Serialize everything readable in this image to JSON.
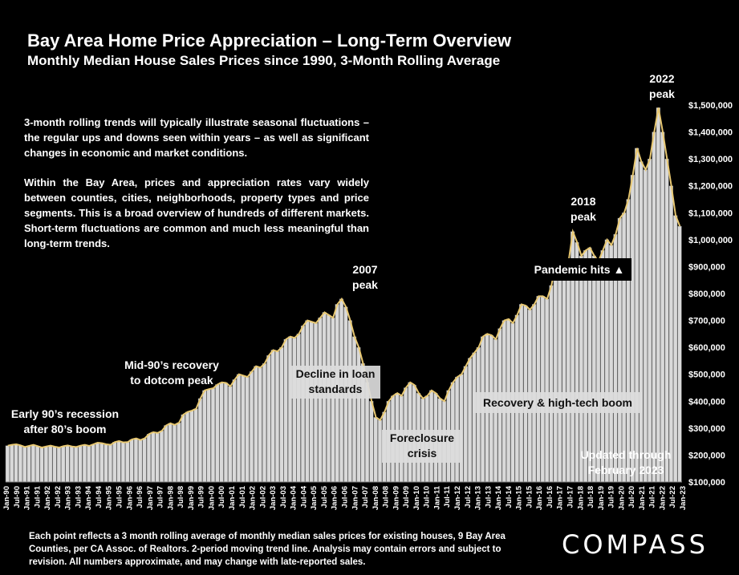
{
  "header": {
    "title": "Bay Area Home Price Appreciation – Long-Term Overview",
    "subtitle": "Monthly Median House Sales Prices since 1990, 3-Month Rolling Average"
  },
  "body_text": {
    "paragraph1": "3-month rolling trends will typically illustrate seasonal fluctuations – the regular ups and downs seen within years – as well as significant changes in economic and market conditions.",
    "paragraph2": "Within the Bay Area, prices and appreciation rates vary widely between counties, cities, neighborhoods, property types and price segments. This is a broad overview of hundreds of different markets. Short-term fluctuations are common and much less meaningful than long-term trends."
  },
  "annotations": {
    "early90s": [
      "Early 90’s recession",
      "after 80’s boom"
    ],
    "mid90s": [
      "Mid-90’s recovery",
      "to dotcom peak"
    ],
    "decline": [
      "Decline in loan",
      "standards"
    ],
    "peak2007": [
      "2007",
      "peak"
    ],
    "foreclosure": [
      "Foreclosure",
      "crisis"
    ],
    "recovery": "Recovery & high-tech boom",
    "peak2018": [
      "2018",
      "peak"
    ],
    "pandemic": "Pandemic hits ▲",
    "peak2022": [
      "2022",
      "peak"
    ],
    "updated": [
      "Updated through",
      "February 2023"
    ]
  },
  "footer": {
    "note": "Each point reflects a 3 month rolling average of monthly median sales prices for existing houses, 9 Bay Area Counties, per CA Assoc. of Realtors. 2-period moving trend line. Analysis may contain errors and subject to revision. All numbers approximate, and may change with late-reported sales.",
    "logo": "COMPASS"
  },
  "colors": {
    "background": "#000000",
    "bars": "#d9d9d9",
    "bar_outline": "#7a7a7a",
    "trend_line": "#e8c872",
    "text": "#ffffff"
  },
  "chart_data": {
    "type": "bar",
    "title": "Bay Area Home Price Appreciation – Long-Term Overview",
    "subtitle": "Monthly Median House Sales Prices since 1990, 3-Month Rolling Average",
    "xlabel": "",
    "ylabel": "",
    "ylim": [
      100000,
      1500000
    ],
    "y_ticks": [
      "$100,000",
      "$200,000",
      "$300,000",
      "$400,000",
      "$500,000",
      "$600,000",
      "$700,000",
      "$800,000",
      "$900,000",
      "$1,000,000",
      "$1,100,000",
      "$1,200,000",
      "$1,300,000",
      "$1,400,000",
      "$1,500,000"
    ],
    "x_ticks": [
      "Jan-90",
      "Jul-90",
      "Jan-91",
      "Jul-91",
      "Jan-92",
      "Jul-92",
      "Jan-93",
      "Jul-93",
      "Jan-94",
      "Jul-94",
      "Jan-95",
      "Jul-95",
      "Jan-96",
      "Jul-96",
      "Jan-97",
      "Jul-97",
      "Jan-98",
      "Jul-98",
      "Jan-99",
      "Jul-99",
      "Jan-00",
      "Jul-00",
      "Jan-01",
      "Jul-01",
      "Jan-02",
      "Jul-02",
      "Jan-03",
      "Jul-03",
      "Jan-04",
      "Jul-04",
      "Jan-05",
      "Jul-05",
      "Jan-06",
      "Jul-06",
      "Jan-07",
      "Jul-07",
      "Jan-08",
      "Jul-08",
      "Jan-09",
      "Jul-09",
      "Jan-10",
      "Jul-10",
      "Jan-11",
      "Jul-11",
      "Jan-12",
      "Jul-12",
      "Jan-13",
      "Jul-13",
      "Jan-14",
      "Jul-14",
      "Jan-15",
      "Jul-15",
      "Jan-16",
      "Jul-16",
      "Jan-17",
      "Jul-17",
      "Jan-18",
      "Jul-18",
      "Jan-19",
      "Jul-19",
      "Jan-20",
      "Jul-20",
      "Jan-21",
      "Jul-21",
      "Jan-22",
      "Jul-22",
      "Jan-23"
    ],
    "series": [
      {
        "name": "3-month rolling average median house price",
        "values": [
          235000,
          238000,
          240000,
          236000,
          230000,
          234000,
          238000,
          233000,
          228000,
          232000,
          235000,
          231000,
          228000,
          233000,
          236000,
          232000,
          230000,
          235000,
          238000,
          234000,
          240000,
          246000,
          244000,
          240000,
          238000,
          248000,
          252000,
          247000,
          248000,
          258000,
          262000,
          256000,
          262000,
          278000,
          285000,
          282000,
          290000,
          310000,
          318000,
          312000,
          320000,
          350000,
          360000,
          365000,
          372000,
          410000,
          440000,
          445000,
          448000,
          462000,
          470000,
          468000,
          455000,
          480000,
          500000,
          495000,
          490000,
          510000,
          530000,
          525000,
          540000,
          570000,
          590000,
          585000,
          600000,
          630000,
          640000,
          635000,
          650000,
          680000,
          700000,
          695000,
          690000,
          710000,
          730000,
          720000,
          710000,
          760000,
          780000,
          750000,
          700000,
          640000,
          600000,
          540000,
          470000,
          400000,
          340000,
          330000,
          360000,
          400000,
          420000,
          430000,
          420000,
          450000,
          470000,
          460000,
          430000,
          410000,
          420000,
          440000,
          430000,
          410000,
          400000,
          440000,
          470000,
          490000,
          500000,
          530000,
          560000,
          580000,
          600000,
          640000,
          650000,
          645000,
          630000,
          670000,
          700000,
          705000,
          690000,
          720000,
          760000,
          755000,
          740000,
          760000,
          790000,
          790000,
          780000,
          830000,
          910000,
          880000,
          860000,
          920000,
          1030000,
          990000,
          940000,
          960000,
          970000,
          940000,
          920000,
          960000,
          1000000,
          980000,
          1020000,
          1080000,
          1100000,
          1150000,
          1240000,
          1340000,
          1290000,
          1260000,
          1300000,
          1400000,
          1490000,
          1400000,
          1300000,
          1200000,
          1090000,
          1050000
        ]
      }
    ],
    "annotations": [
      "Early 90’s recession after 80’s boom",
      "Mid-90’s recovery to dotcom peak",
      "Decline in loan standards",
      "2007 peak",
      "Foreclosure crisis",
      "Recovery & high-tech boom",
      "2018 peak",
      "Pandemic hits ▲",
      "2022 peak",
      "Updated through February 2023"
    ],
    "grid": false,
    "legend": "none"
  }
}
